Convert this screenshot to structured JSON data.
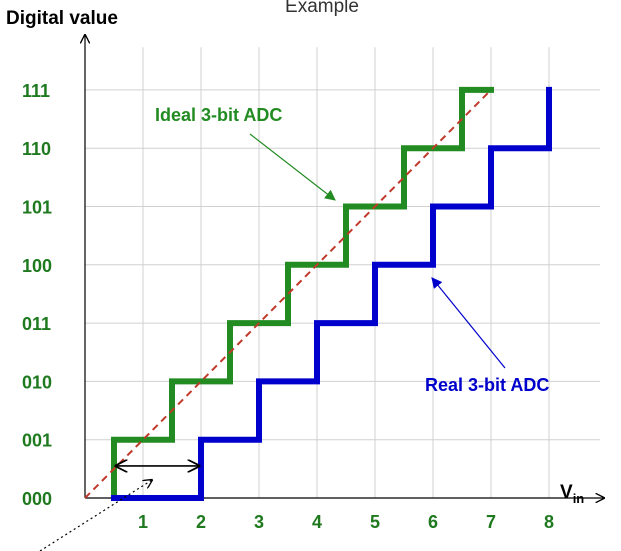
{
  "chart_data": {
    "type": "line",
    "title": "Example",
    "ylabel": "Digital value",
    "xlabel_main": "V",
    "xlabel_sub": "in",
    "x_ticks": [
      "1",
      "2",
      "3",
      "4",
      "5",
      "6",
      "7",
      "8"
    ],
    "y_ticks": [
      "000",
      "001",
      "010",
      "011",
      "100",
      "101",
      "110",
      "111"
    ],
    "xlim": [
      -0.5,
      8.5
    ],
    "ylim": [
      0,
      7.8
    ],
    "grid": true,
    "series": [
      {
        "name": "Ideal 3-bit ADC",
        "color": "#228b22",
        "style": "step",
        "points": [
          [
            0.5,
            0
          ],
          [
            0.5,
            1
          ],
          [
            1.5,
            1
          ],
          [
            1.5,
            2
          ],
          [
            2.5,
            2
          ],
          [
            2.5,
            3
          ],
          [
            3.5,
            3
          ],
          [
            3.5,
            4
          ],
          [
            4.5,
            4
          ],
          [
            4.5,
            5
          ],
          [
            5.5,
            5
          ],
          [
            5.5,
            6
          ],
          [
            6.5,
            6
          ],
          [
            6.5,
            7
          ],
          [
            7,
            7
          ]
        ]
      },
      {
        "name": "Real 3-bit ADC",
        "color": "#0000cc",
        "style": "step",
        "points": [
          [
            0.5,
            0
          ],
          [
            2,
            0
          ],
          [
            2,
            1
          ],
          [
            3,
            1
          ],
          [
            3,
            2
          ],
          [
            4,
            2
          ],
          [
            4,
            3
          ],
          [
            5,
            3
          ],
          [
            5,
            4
          ],
          [
            6,
            4
          ],
          [
            6,
            5
          ],
          [
            7,
            5
          ],
          [
            7,
            6
          ],
          [
            8,
            6
          ],
          [
            8,
            7
          ]
        ]
      },
      {
        "name": "",
        "color": "#c0392b",
        "style": "dashed",
        "points": [
          [
            0,
            0
          ],
          [
            7,
            7
          ]
        ]
      }
    ],
    "annotations": [
      {
        "text": "Ideal 3-bit ADC",
        "color": "#228b22",
        "series": 0
      },
      {
        "text": "Real 3-bit ADC",
        "color": "#0000cc",
        "series": 1
      }
    ],
    "offset_marker": {
      "from": 0.5,
      "to": 2,
      "y": 0.55
    }
  }
}
